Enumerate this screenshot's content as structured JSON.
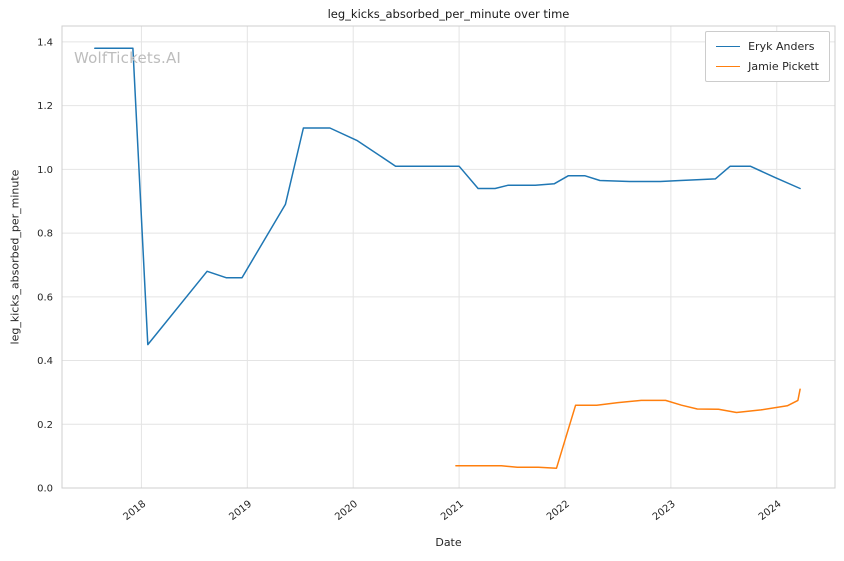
{
  "watermark": "WolfTickets.AI",
  "chart_data": {
    "type": "line",
    "title": "leg_kicks_absorbed_per_minute over time",
    "xlabel": "Date",
    "ylabel": "leg_kicks_absorbed_per_minute",
    "xlim": [
      2017.25,
      2024.55
    ],
    "ylim": [
      0,
      1.45
    ],
    "xticks": [
      2018,
      2019,
      2020,
      2021,
      2022,
      2023,
      2024
    ],
    "yticks": [
      0.0,
      0.2,
      0.4,
      0.6,
      0.8,
      1.0,
      1.2,
      1.4
    ],
    "grid": true,
    "legend_position": "upper right",
    "series": [
      {
        "name": "Eryk Anders",
        "color": "#1f77b4",
        "x": [
          2017.56,
          2017.92,
          2018.06,
          2018.62,
          2018.8,
          2018.95,
          2019.36,
          2019.53,
          2019.78,
          2020.04,
          2020.4,
          2021.0,
          2021.18,
          2021.34,
          2021.46,
          2021.72,
          2021.9,
          2022.03,
          2022.19,
          2022.33,
          2022.61,
          2022.9,
          2023.09,
          2023.27,
          2023.42,
          2023.56,
          2023.75,
          2023.98,
          2024.22
        ],
        "y": [
          1.38,
          1.38,
          0.45,
          0.68,
          0.66,
          0.66,
          0.89,
          1.13,
          1.13,
          1.09,
          1.01,
          1.01,
          0.94,
          0.94,
          0.95,
          0.95,
          0.955,
          0.98,
          0.98,
          0.965,
          0.962,
          0.962,
          0.965,
          0.968,
          0.97,
          1.01,
          1.01,
          0.975,
          0.94
        ]
      },
      {
        "name": "Jamie Pickett",
        "color": "#ff7f0e",
        "x": [
          2020.97,
          2021.2,
          2021.4,
          2021.55,
          2021.75,
          2021.92,
          2022.1,
          2022.3,
          2022.5,
          2022.72,
          2022.95,
          2023.1,
          2023.25,
          2023.45,
          2023.62,
          2023.85,
          2024.1,
          2024.2,
          2024.22
        ],
        "y": [
          0.07,
          0.07,
          0.07,
          0.065,
          0.065,
          0.062,
          0.26,
          0.26,
          0.268,
          0.275,
          0.275,
          0.26,
          0.248,
          0.247,
          0.237,
          0.245,
          0.258,
          0.275,
          0.31
        ]
      }
    ]
  }
}
